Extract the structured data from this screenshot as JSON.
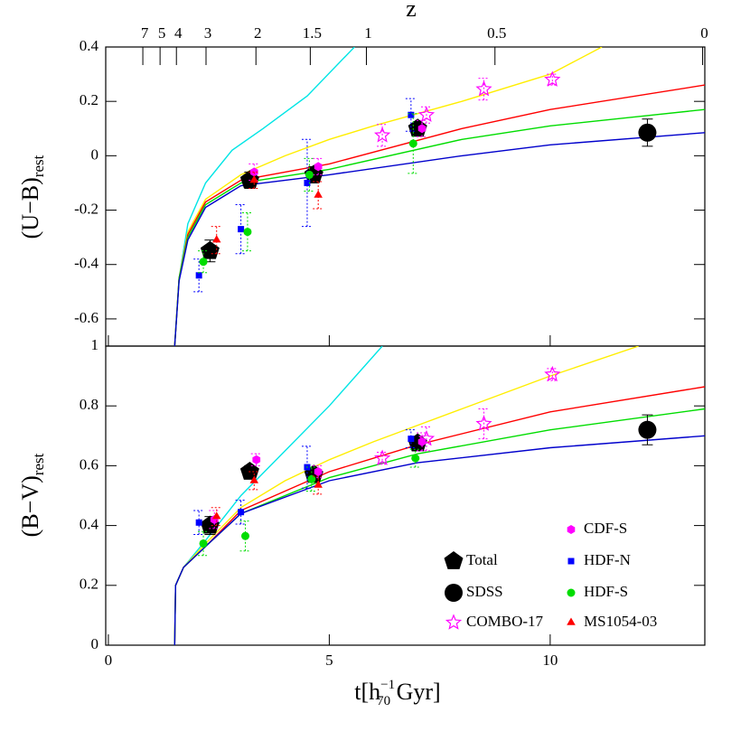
{
  "chart_data": [
    {
      "type": "scatter",
      "ylabel": "(U−B)",
      "ylabel_sub": "rest",
      "xlim": [
        -0.06,
        13.5
      ],
      "ylim": [
        -0.7,
        0.4
      ],
      "xticks": [
        0,
        5,
        10
      ],
      "yticks": [
        -0.6,
        -0.4,
        -0.2,
        0,
        0.2,
        0.4
      ],
      "top_axis": {
        "label": "z",
        "ticks": [
          7,
          5,
          4,
          3,
          2,
          1.5,
          1,
          0.5,
          0
        ],
        "t_positions": [
          0.78,
          1.17,
          1.54,
          2.21,
          3.34,
          4.57,
          5.84,
          8.75,
          13.45
        ]
      },
      "series": [
        {
          "color": "#000000",
          "marker": "pentagon",
          "x": [
            2.3,
            3.2,
            4.65,
            7.0
          ],
          "values": [
            -0.35,
            -0.09,
            -0.07,
            0.1
          ],
          "errors": [
            0.04,
            0.03,
            0.03,
            0.02
          ]
        },
        {
          "color": "#000000",
          "marker": "bigcircle",
          "x": [
            12.2
          ],
          "values": [
            0.085
          ],
          "errors": [
            0.05
          ]
        },
        {
          "color": "#ff00ff",
          "marker": "star",
          "x": [
            6.2,
            7.2,
            8.5,
            10.05
          ],
          "values": [
            0.075,
            0.15,
            0.245,
            0.28
          ],
          "errors": [
            0.04,
            0.03,
            0.04,
            0.02
          ]
        },
        {
          "color": "#ff00ff",
          "marker": "hexagon",
          "x": [
            3.3,
            4.75,
            7.1
          ],
          "values": [
            -0.06,
            -0.04,
            0.1
          ],
          "errors": [
            0.03,
            0.03,
            0.03
          ]
        },
        {
          "color": "#0000ff",
          "marker": "square",
          "x": [
            2.05,
            3.0,
            4.5,
            6.85
          ],
          "values": [
            -0.44,
            -0.27,
            -0.1,
            0.15
          ],
          "errors": [
            0.06,
            0.09,
            0.16,
            0.06
          ]
        },
        {
          "color": "#00dd00",
          "marker": "circle",
          "x": [
            2.15,
            3.15,
            4.55,
            6.9
          ],
          "values": [
            -0.39,
            -0.28,
            -0.07,
            0.045
          ],
          "errors": [
            0.04,
            0.07,
            0.06,
            0.11
          ]
        },
        {
          "color": "#ff0000",
          "marker": "triangle",
          "x": [
            2.45,
            3.3,
            4.75
          ],
          "values": [
            -0.31,
            -0.09,
            -0.145
          ],
          "errors": [
            0.05,
            0.03,
            0.05
          ]
        }
      ],
      "models": [
        {
          "color": "#00e5e5",
          "x": [
            1.5,
            1.6,
            1.8,
            2.2,
            2.8,
            3.5,
            4.5,
            5.57
          ],
          "values": [
            -0.7,
            -0.45,
            -0.25,
            -0.1,
            0.02,
            0.1,
            0.22,
            0.4
          ]
        },
        {
          "color": "#ffee00",
          "x": [
            1.5,
            1.6,
            1.8,
            2.2,
            3,
            4,
            5,
            6,
            8,
            10,
            11.17
          ],
          "values": [
            -0.7,
            -0.45,
            -0.28,
            -0.16,
            -0.07,
            0.0,
            0.06,
            0.11,
            0.2,
            0.3,
            0.4
          ]
        },
        {
          "color": "#ff0000",
          "x": [
            1.5,
            1.6,
            1.8,
            2.2,
            3,
            5,
            8,
            10,
            13.5
          ],
          "values": [
            -0.7,
            -0.45,
            -0.29,
            -0.17,
            -0.09,
            -0.03,
            0.1,
            0.17,
            0.26
          ]
        },
        {
          "color": "#00dd00",
          "x": [
            1.5,
            1.6,
            1.8,
            2.2,
            3,
            5,
            8,
            10,
            13.5
          ],
          "values": [
            -0.7,
            -0.45,
            -0.3,
            -0.18,
            -0.1,
            -0.05,
            0.06,
            0.11,
            0.17
          ]
        },
        {
          "color": "#0000cc",
          "x": [
            1.5,
            1.6,
            1.8,
            2.2,
            3,
            5,
            8,
            10,
            13.5
          ],
          "values": [
            -0.7,
            -0.46,
            -0.31,
            -0.19,
            -0.11,
            -0.07,
            0.0,
            0.04,
            0.085
          ]
        }
      ]
    },
    {
      "type": "scatter",
      "ylabel": "(B−V)",
      "ylabel_sub": "rest",
      "xlabel": "t[h",
      "xlabel_sub": "70",
      "xlabel_sup": "−1",
      "xlabel_end": " Gyr]",
      "xlim": [
        -0.06,
        13.5
      ],
      "ylim": [
        0,
        1
      ],
      "xticks": [
        0,
        5,
        10
      ],
      "yticks": [
        0,
        0.2,
        0.4,
        0.6,
        0.8,
        1
      ],
      "series": [
        {
          "name": "Total",
          "color": "#000000",
          "marker": "pentagon",
          "x": [
            2.3,
            3.2,
            4.65,
            7.0
          ],
          "values": [
            0.4,
            0.58,
            0.57,
            0.675
          ],
          "errors": [
            0.03,
            0.02,
            0.02,
            0.02
          ]
        },
        {
          "name": "SDSS",
          "color": "#000000",
          "marker": "bigcircle",
          "x": [
            12.2
          ],
          "values": [
            0.72
          ],
          "errors": [
            0.05
          ]
        },
        {
          "name": "COMBO-17",
          "color": "#ff00ff",
          "marker": "star",
          "x": [
            6.2,
            7.2,
            8.5,
            10.05
          ],
          "values": [
            0.625,
            0.69,
            0.74,
            0.905
          ],
          "errors": [
            0.02,
            0.04,
            0.05,
            0.02
          ]
        },
        {
          "name": "CDF-S",
          "color": "#ff00ff",
          "marker": "hexagon",
          "x": [
            2.4,
            3.35,
            4.75,
            7.1
          ],
          "values": [
            0.42,
            0.62,
            0.58,
            0.68
          ],
          "errors": [
            0.03,
            0.02,
            0.02,
            0.03
          ]
        },
        {
          "name": "HDF-N",
          "color": "#0000ff",
          "marker": "square",
          "x": [
            2.05,
            3.0,
            4.5,
            6.85
          ],
          "values": [
            0.41,
            0.445,
            0.595,
            0.69
          ],
          "errors": [
            0.04,
            0.04,
            0.07,
            0.03
          ]
        },
        {
          "name": "HDF-S",
          "color": "#00dd00",
          "marker": "circle",
          "x": [
            2.15,
            3.1,
            4.6,
            6.95
          ],
          "values": [
            0.34,
            0.365,
            0.555,
            0.625
          ],
          "errors": [
            0.04,
            0.05,
            0.04,
            0.03
          ]
        },
        {
          "name": "MS1054-03",
          "color": "#ff0000",
          "marker": "triangle",
          "x": [
            2.45,
            3.3,
            4.75
          ],
          "values": [
            0.43,
            0.55,
            0.535
          ],
          "errors": [
            0.03,
            0.03,
            0.03
          ]
        }
      ],
      "models": [
        {
          "color": "#00e5e5",
          "x": [
            1.5,
            1.52,
            1.7,
            2.2,
            3,
            4,
            5,
            6.2
          ],
          "values": [
            0,
            0.2,
            0.26,
            0.35,
            0.5,
            0.65,
            0.8,
            1
          ]
        },
        {
          "color": "#ffee00",
          "x": [
            1.5,
            1.52,
            1.7,
            2.2,
            3,
            4,
            5,
            6,
            8,
            10,
            12
          ],
          "values": [
            0,
            0.2,
            0.26,
            0.34,
            0.46,
            0.55,
            0.62,
            0.68,
            0.79,
            0.9,
            1
          ]
        },
        {
          "color": "#ff0000",
          "x": [
            1.5,
            1.52,
            1.7,
            2.2,
            3,
            5,
            7,
            10,
            13.5
          ],
          "values": [
            0,
            0.2,
            0.26,
            0.33,
            0.45,
            0.58,
            0.67,
            0.78,
            0.864
          ]
        },
        {
          "color": "#00dd00",
          "x": [
            1.5,
            1.52,
            1.7,
            2.2,
            3,
            5,
            7,
            10,
            13.5
          ],
          "values": [
            0,
            0.2,
            0.26,
            0.33,
            0.44,
            0.56,
            0.64,
            0.72,
            0.79
          ]
        },
        {
          "color": "#0000cc",
          "x": [
            1.5,
            1.52,
            1.7,
            2.2,
            3,
            5,
            7,
            10,
            13.5
          ],
          "values": [
            0,
            0.2,
            0.26,
            0.33,
            0.44,
            0.55,
            0.61,
            0.66,
            0.7
          ]
        }
      ]
    }
  ]
}
